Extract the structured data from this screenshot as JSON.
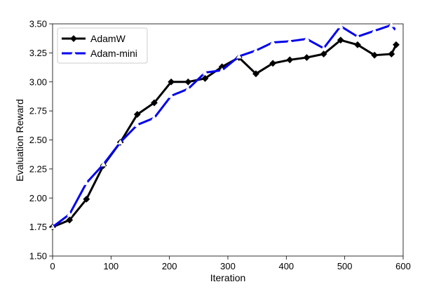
{
  "chart_data": {
    "type": "line",
    "xlabel": "Iteration",
    "ylabel": "Evaluation Reward",
    "xlim": [
      0,
      600
    ],
    "ylim": [
      1.5,
      3.5
    ],
    "xticks": [
      0,
      100,
      200,
      300,
      400,
      500,
      600
    ],
    "xtick_labels": [
      "0",
      "100",
      "200",
      "300",
      "400",
      "500",
      "600"
    ],
    "yticks": [
      1.5,
      1.75,
      2.0,
      2.25,
      2.5,
      2.75,
      3.0,
      3.25,
      3.5
    ],
    "ytick_labels": [
      "1.50",
      "1.75",
      "2.00",
      "2.25",
      "2.50",
      "2.75",
      "3.00",
      "3.25",
      "3.50"
    ],
    "grid": false,
    "legend_position": "top-left",
    "series": [
      {
        "name": "AdamW",
        "color": "#000000",
        "marker": "diamond",
        "x": [
          0,
          29,
          58,
          87,
          116,
          145,
          174,
          203,
          232,
          261,
          290,
          319,
          348,
          377,
          406,
          435,
          464,
          493,
          522,
          551,
          580,
          588
        ],
        "y": [
          1.75,
          1.81,
          1.99,
          2.28,
          2.48,
          2.72,
          2.82,
          3.0,
          3.0,
          3.03,
          3.13,
          3.21,
          3.07,
          3.16,
          3.19,
          3.21,
          3.24,
          3.36,
          3.32,
          3.23,
          3.24,
          3.32
        ]
      },
      {
        "name": "Adam-mini",
        "color": "#0000ee",
        "marker": "triangle",
        "x": [
          0,
          29,
          58,
          87,
          116,
          145,
          174,
          203,
          232,
          261,
          290,
          319,
          348,
          377,
          406,
          435,
          464,
          493,
          522,
          551,
          580,
          588
        ],
        "y": [
          1.75,
          1.86,
          2.13,
          2.29,
          2.48,
          2.63,
          2.69,
          2.88,
          2.94,
          3.08,
          3.1,
          3.22,
          3.27,
          3.34,
          3.35,
          3.37,
          3.29,
          3.48,
          3.39,
          3.44,
          3.49,
          3.44
        ]
      }
    ]
  }
}
